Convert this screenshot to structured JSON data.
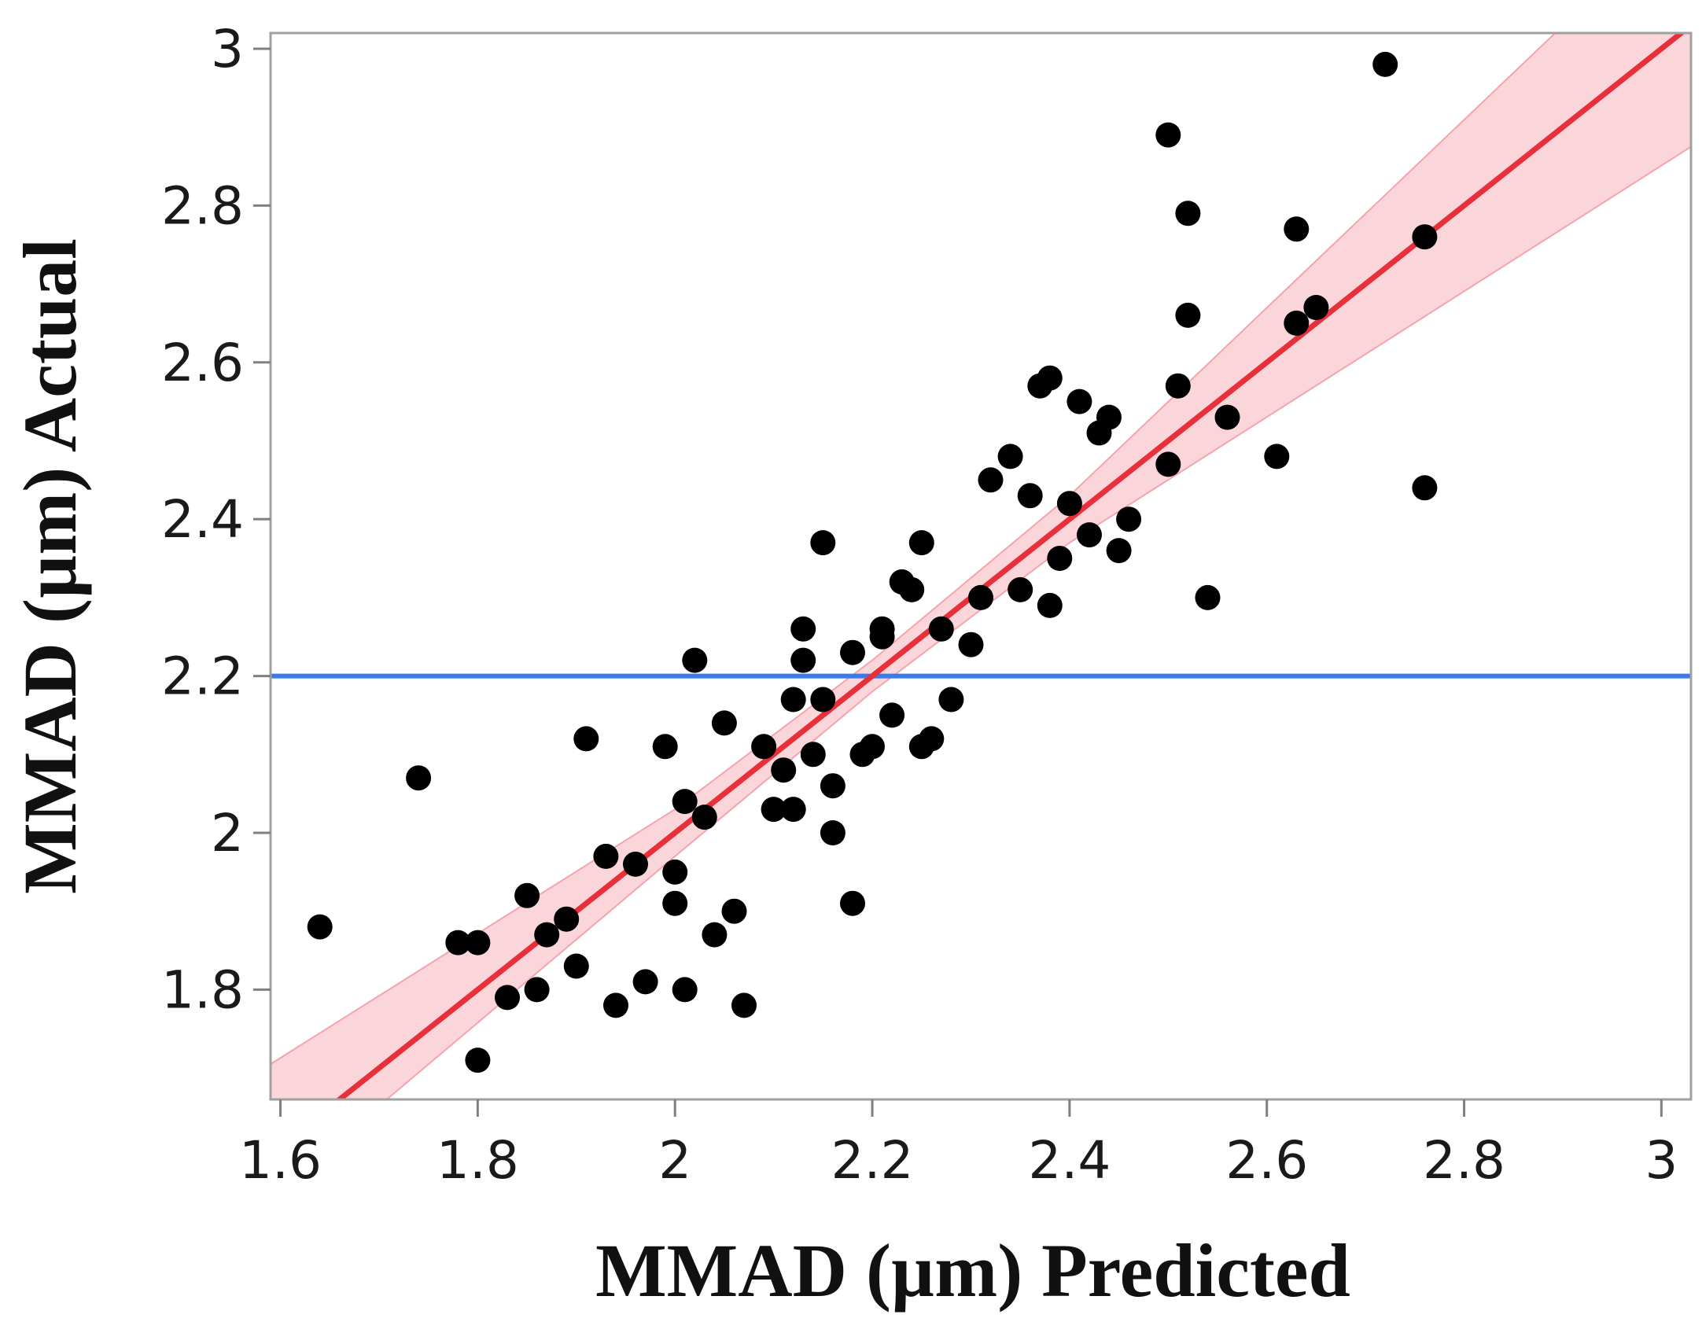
{
  "chart_data": {
    "type": "scatter",
    "xlabel": "MMAD (µm) Predicted",
    "ylabel": "MMAD (µm) Actual",
    "xlim": [
      1.59,
      3.03
    ],
    "ylim": [
      1.66,
      3.02
    ],
    "x_ticks": [
      1.6,
      1.8,
      2,
      2.2,
      2.4,
      2.6,
      2.8,
      3
    ],
    "y_ticks": [
      1.8,
      2,
      2.2,
      2.4,
      2.6,
      2.8,
      3
    ],
    "x_tick_labels": [
      "1.6",
      "1.8",
      "2",
      "2.2",
      "2.4",
      "2.6",
      "2.8",
      "3"
    ],
    "y_tick_labels": [
      "1.8",
      "2",
      "2.2",
      "2.4",
      "2.6",
      "2.8",
      "3"
    ],
    "mean_line": {
      "y": 2.2,
      "color": "#3a7be8"
    },
    "fit_line": {
      "points": [
        [
          1.59,
          1.59
        ],
        [
          3.03,
          3.03
        ]
      ],
      "color": "#e8303a"
    },
    "confidence_band": {
      "color": "#f5a3ad",
      "x": [
        1.59,
        2.0,
        2.2,
        2.4,
        3.03
      ],
      "lower": [
        1.535,
        1.97,
        2.18,
        2.37,
        2.875
      ],
      "upper": [
        1.705,
        2.03,
        2.22,
        2.43,
        3.185
      ]
    },
    "points_color": "#000000",
    "points": [
      [
        1.64,
        1.88
      ],
      [
        1.74,
        2.07
      ],
      [
        1.78,
        1.86
      ],
      [
        1.8,
        1.86
      ],
      [
        1.8,
        1.71
      ],
      [
        1.83,
        1.79
      ],
      [
        1.85,
        1.92
      ],
      [
        1.86,
        1.8
      ],
      [
        1.87,
        1.87
      ],
      [
        1.89,
        1.89
      ],
      [
        1.9,
        1.83
      ],
      [
        1.91,
        2.12
      ],
      [
        1.93,
        1.97
      ],
      [
        1.94,
        1.78
      ],
      [
        1.96,
        1.96
      ],
      [
        1.97,
        1.81
      ],
      [
        1.99,
        2.11
      ],
      [
        2.0,
        1.95
      ],
      [
        2.0,
        1.91
      ],
      [
        2.01,
        1.8
      ],
      [
        2.01,
        2.04
      ],
      [
        2.02,
        2.22
      ],
      [
        2.03,
        2.02
      ],
      [
        2.04,
        1.87
      ],
      [
        2.05,
        2.14
      ],
      [
        2.06,
        1.9
      ],
      [
        2.07,
        1.78
      ],
      [
        2.09,
        2.11
      ],
      [
        2.1,
        2.03
      ],
      [
        2.11,
        2.08
      ],
      [
        2.12,
        2.17
      ],
      [
        2.12,
        2.03
      ],
      [
        2.13,
        2.22
      ],
      [
        2.13,
        2.26
      ],
      [
        2.14,
        2.1
      ],
      [
        2.15,
        2.17
      ],
      [
        2.15,
        2.37
      ],
      [
        2.16,
        2.0
      ],
      [
        2.16,
        2.06
      ],
      [
        2.18,
        2.23
      ],
      [
        2.18,
        1.91
      ],
      [
        2.19,
        2.1
      ],
      [
        2.2,
        2.11
      ],
      [
        2.21,
        2.25
      ],
      [
        2.21,
        2.26
      ],
      [
        2.22,
        2.15
      ],
      [
        2.23,
        2.32
      ],
      [
        2.24,
        2.31
      ],
      [
        2.25,
        2.37
      ],
      [
        2.25,
        2.11
      ],
      [
        2.26,
        2.12
      ],
      [
        2.27,
        2.26
      ],
      [
        2.28,
        2.17
      ],
      [
        2.3,
        2.24
      ],
      [
        2.31,
        2.3
      ],
      [
        2.32,
        2.45
      ],
      [
        2.34,
        2.48
      ],
      [
        2.35,
        2.31
      ],
      [
        2.36,
        2.43
      ],
      [
        2.37,
        2.57
      ],
      [
        2.38,
        2.58
      ],
      [
        2.38,
        2.29
      ],
      [
        2.39,
        2.35
      ],
      [
        2.4,
        2.42
      ],
      [
        2.41,
        2.55
      ],
      [
        2.42,
        2.38
      ],
      [
        2.43,
        2.51
      ],
      [
        2.44,
        2.53
      ],
      [
        2.45,
        2.36
      ],
      [
        2.46,
        2.4
      ],
      [
        2.5,
        2.89
      ],
      [
        2.5,
        2.47
      ],
      [
        2.51,
        2.57
      ],
      [
        2.52,
        2.79
      ],
      [
        2.52,
        2.66
      ],
      [
        2.54,
        2.3
      ],
      [
        2.56,
        2.53
      ],
      [
        2.61,
        2.48
      ],
      [
        2.63,
        2.77
      ],
      [
        2.63,
        2.65
      ],
      [
        2.65,
        2.67
      ],
      [
        2.72,
        2.98
      ],
      [
        2.76,
        2.76
      ],
      [
        2.76,
        2.44
      ]
    ]
  }
}
